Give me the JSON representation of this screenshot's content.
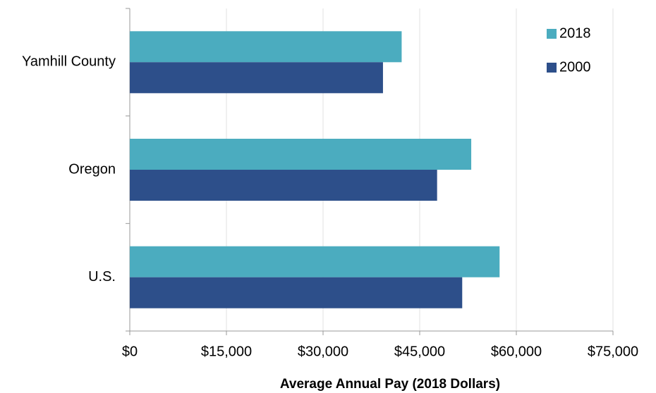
{
  "chart_data": {
    "type": "hbar",
    "x_label": "Average Annual Pay (2018 Dollars)",
    "categories": [
      "Yamhill County",
      "Oregon",
      "U.S."
    ],
    "series": [
      {
        "name": "2018",
        "color": "#4bacbf",
        "values": [
          42200,
          53000,
          57400
        ]
      },
      {
        "name": "2000",
        "color": "#2d4f8a",
        "values": [
          39300,
          47700,
          51600
        ]
      }
    ],
    "xlim": [
      0,
      75000
    ],
    "xticks": [
      {
        "value": 0,
        "label": "$0"
      },
      {
        "value": 15000,
        "label": "$15,000"
      },
      {
        "value": 30000,
        "label": "$30,000"
      },
      {
        "value": 45000,
        "label": "$45,000"
      },
      {
        "value": 60000,
        "label": "$60,000"
      },
      {
        "value": 75000,
        "label": "$75,000"
      }
    ],
    "grid": true,
    "legend": "upper right"
  }
}
